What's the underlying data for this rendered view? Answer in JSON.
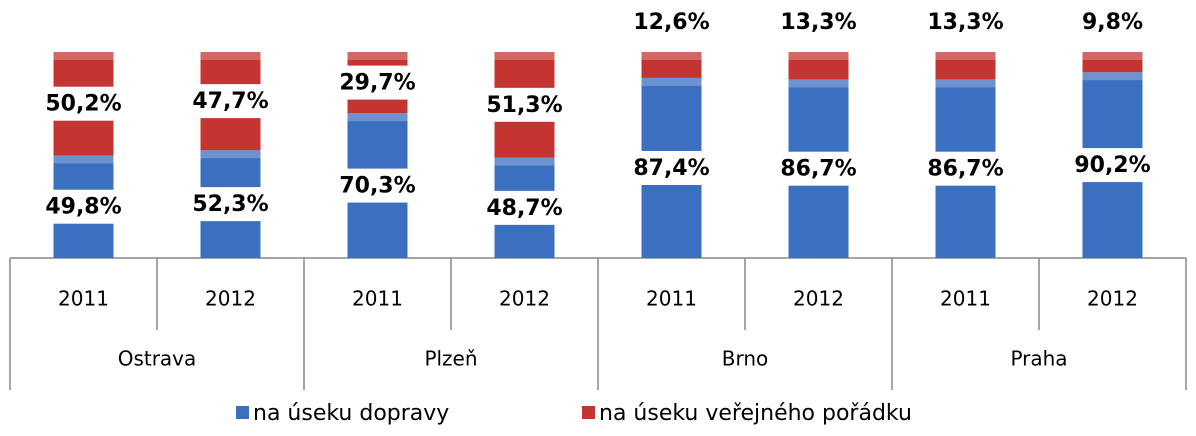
{
  "chart_data": {
    "type": "stacked_bar",
    "categories": [
      "2011",
      "2012",
      "2011",
      "2012",
      "2011",
      "2012",
      "2011",
      "2012"
    ],
    "groups": [
      "Ostrava",
      "Plzeň",
      "Brno",
      "Praha"
    ],
    "ylim": [
      0,
      100
    ],
    "series": [
      {
        "name": "na úseku dopravy",
        "color": "#3b6fbf",
        "values": [
          49.8,
          52.3,
          70.3,
          48.7,
          87.4,
          86.7,
          86.7,
          90.2
        ],
        "value_labels": [
          "49,8%",
          "52,3%",
          "70,3%",
          "48,7%",
          "87,4%",
          "86,7%",
          "86,7%",
          "90,2%"
        ]
      },
      {
        "name": "na úseku veřejného pořádku",
        "color": "#c43431",
        "values": [
          50.2,
          47.7,
          29.7,
          51.3,
          12.6,
          13.3,
          13.3,
          9.8
        ],
        "value_labels": [
          "50,2%",
          "47,7%",
          "29,7%",
          "51,3%",
          "12,6%",
          "13,3%",
          "13,3%",
          "9,8%"
        ]
      }
    ]
  }
}
